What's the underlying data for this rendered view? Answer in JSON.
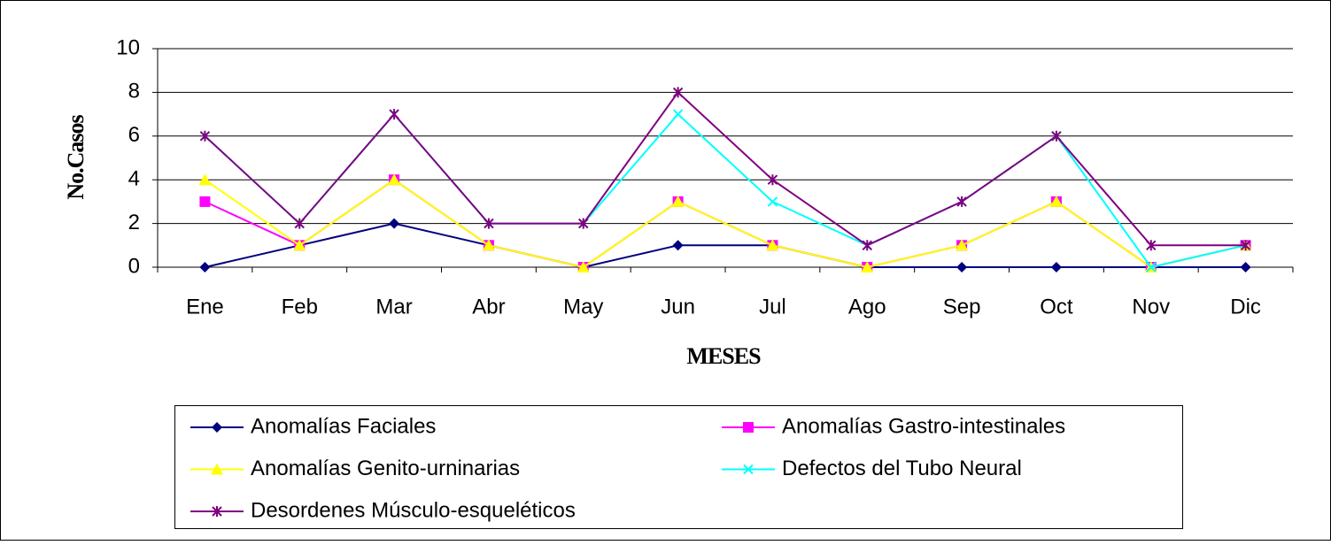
{
  "chart_data": {
    "type": "line",
    "stacked": true,
    "x_label": "MESES",
    "y_label": "No.Casos",
    "categories": [
      "Ene",
      "Feb",
      "Mar",
      "Abr",
      "May",
      "Jun",
      "Jul",
      "Ago",
      "Sep",
      "Oct",
      "Nov",
      "Dic"
    ],
    "series": [
      {
        "name": "Anomalías Faciales",
        "color": "#000080",
        "marker": "diamond",
        "values": [
          0,
          1,
          2,
          1,
          0,
          1,
          1,
          0,
          0,
          0,
          0,
          0
        ]
      },
      {
        "name": "Anomalías Gastro-intestinales",
        "color": "#ff00ff",
        "marker": "square",
        "values": [
          3,
          0,
          2,
          0,
          0,
          2,
          0,
          0,
          1,
          3,
          0,
          1
        ]
      },
      {
        "name": "Anomalías Genito-urninarias",
        "color": "#ffff00",
        "marker": "triangle",
        "values": [
          1,
          0,
          0,
          0,
          0,
          0,
          0,
          0,
          0,
          0,
          0,
          0
        ]
      },
      {
        "name": "Defectos del Tubo Neural",
        "color": "#00ffff",
        "marker": "x",
        "values": [
          2,
          1,
          3,
          1,
          2,
          4,
          2,
          1,
          2,
          3,
          0,
          0
        ]
      },
      {
        "name": "Desordenes Músculo-esqueléticos",
        "color": "#800080",
        "marker": "asterisk",
        "values": [
          0,
          0,
          0,
          0,
          0,
          1,
          1,
          0,
          0,
          0,
          1,
          0
        ]
      }
    ],
    "ylim": [
      0,
      10
    ],
    "yticks": [
      0,
      2,
      4,
      6,
      8,
      10
    ],
    "grid": true,
    "legend": "bottom"
  }
}
